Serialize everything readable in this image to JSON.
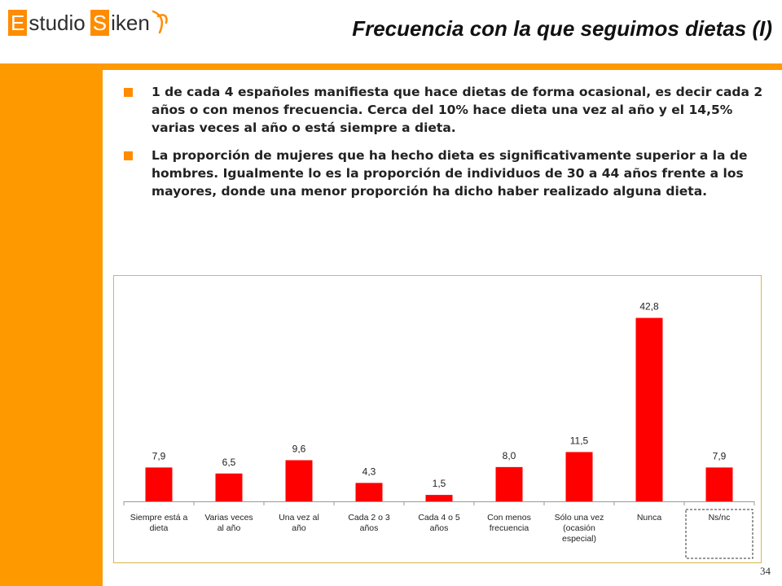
{
  "header": {
    "logo_letter_e": "E",
    "logo_word_1": "studio",
    "logo_letter_s": "S",
    "logo_word_2": "iken",
    "title": "Frecuencia con la que seguimos dietas (I)"
  },
  "bullets": [
    {
      "text": "1 de cada 4 españoles manifiesta que hace dietas de forma ocasional, es decir cada 2 años o con menos frecuencia. Cerca del 10% hace dieta una vez al año y el 14,5% varias veces al año o está siempre a dieta."
    },
    {
      "text": "La proporción de mujeres que ha hecho dieta es significativamente superior a la de hombres. Igualmente lo es la proporción de individuos de 30 a 44 años frente a los mayores, donde una menor proporción ha dicho haber realizado alguna dieta."
    }
  ],
  "page_number": "34",
  "colors": {
    "accent": "#ff9900",
    "bar": "#ff0000",
    "chart_border": "#d7b84a"
  },
  "chart_data": {
    "type": "bar",
    "categories": [
      [
        "Siempre está a",
        "dieta"
      ],
      [
        "Varias veces",
        "al año"
      ],
      [
        "Una vez al",
        "año"
      ],
      [
        "Cada 2 o 3",
        "años"
      ],
      [
        "Cada 4 o 5",
        "años"
      ],
      [
        "Con menos",
        "frecuencia"
      ],
      [
        "Sólo una vez",
        "(ocasión",
        "especial)"
      ],
      [
        "Nunca"
      ],
      [
        "Ns/nc"
      ]
    ],
    "values": [
      7.9,
      6.5,
      9.6,
      4.3,
      1.5,
      8.0,
      11.5,
      42.8,
      7.9
    ],
    "value_labels": [
      "7,9",
      "6,5",
      "9,6",
      "4,3",
      "1,5",
      "8,0",
      "11,5",
      "42,8",
      "7,9"
    ],
    "highlighted_category": "Ns/nc",
    "title": "",
    "xlabel": "",
    "ylabel": "",
    "ylim": [
      0,
      45
    ],
    "grid": false,
    "legend": "none"
  }
}
